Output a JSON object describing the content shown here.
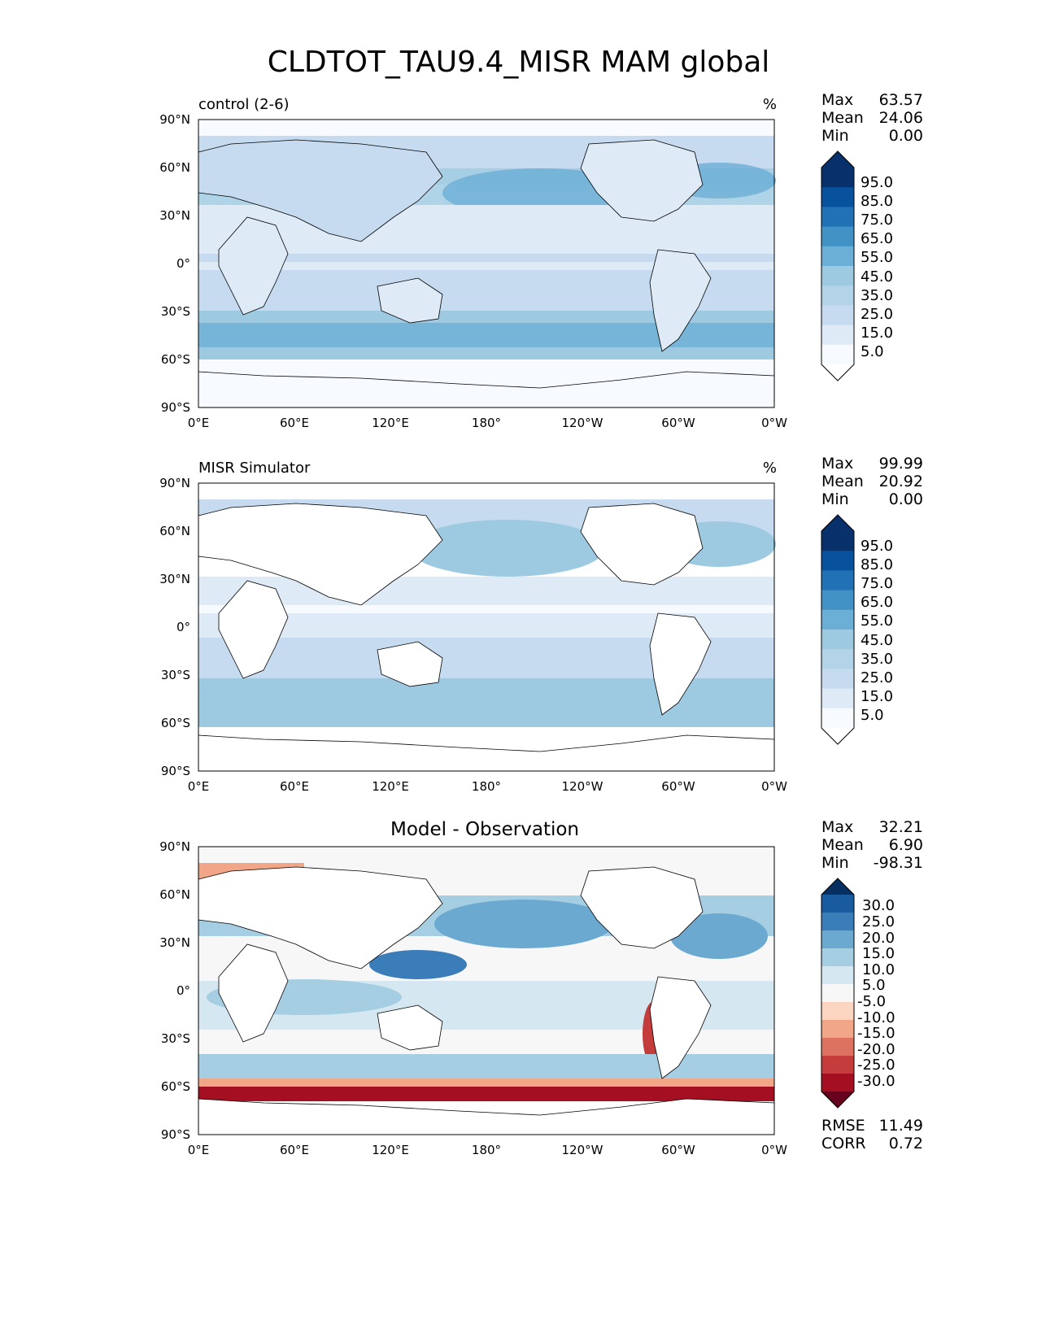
{
  "figure": {
    "title": "CLDTOT_TAU9.4_MISR MAM global",
    "x_ticks": [
      "0°E",
      "60°E",
      "120°E",
      "180°",
      "120°W",
      "60°W",
      "0°W"
    ],
    "y_ticks": [
      "90°N",
      "60°N",
      "30°N",
      "0°",
      "30°S",
      "60°S",
      "90°S"
    ]
  },
  "panels": [
    {
      "label": "control (2-6)",
      "unit": "%",
      "stats": {
        "max_label": "Max",
        "max": "63.57",
        "mean_label": "Mean",
        "mean": "24.06",
        "min_label": "Min",
        "min": "0.00"
      },
      "colorbar_labels": [
        "95.0",
        "85.0",
        "75.0",
        "65.0",
        "55.0",
        "45.0",
        "35.0",
        "25.0",
        "15.0",
        "5.0"
      ]
    },
    {
      "label": "MISR Simulator",
      "unit": "%",
      "stats": {
        "max_label": "Max",
        "max": "99.99",
        "mean_label": "Mean",
        "mean": "20.92",
        "min_label": "Min",
        "min": "0.00"
      },
      "colorbar_labels": [
        "95.0",
        "85.0",
        "75.0",
        "65.0",
        "55.0",
        "45.0",
        "35.0",
        "25.0",
        "15.0",
        "5.0"
      ]
    },
    {
      "label": "Model - Observation",
      "stats": {
        "max_label": "Max",
        "max": "32.21",
        "mean_label": "Mean",
        "mean": "6.90",
        "min_label": "Min",
        "min": "-98.31"
      },
      "colorbar_labels": [
        "30.0",
        "25.0",
        "20.0",
        "15.0",
        "10.0",
        "5.0",
        "-5.0",
        "-10.0",
        "-15.0",
        "-20.0",
        "-25.0",
        "-30.0"
      ],
      "metrics": {
        "rmse_label": "RMSE",
        "rmse": "11.49",
        "corr_label": "CORR",
        "corr": "0.72"
      }
    }
  ],
  "colors": {
    "blues": [
      "#f7fbff",
      "#deebf7",
      "#c6dbef",
      "#b3d3e8",
      "#9ecae1",
      "#6baed6",
      "#4292c6",
      "#2171b5",
      "#08519c",
      "#08306b"
    ],
    "diverging": [
      "#67001f",
      "#a50f22",
      "#c43c3c",
      "#de7260",
      "#f1a687",
      "#fbd5bf",
      "#f7f7f7",
      "#d5e7f1",
      "#a6cee3",
      "#6ba9d0",
      "#3a7db8",
      "#1a5a9e",
      "#053061"
    ]
  }
}
